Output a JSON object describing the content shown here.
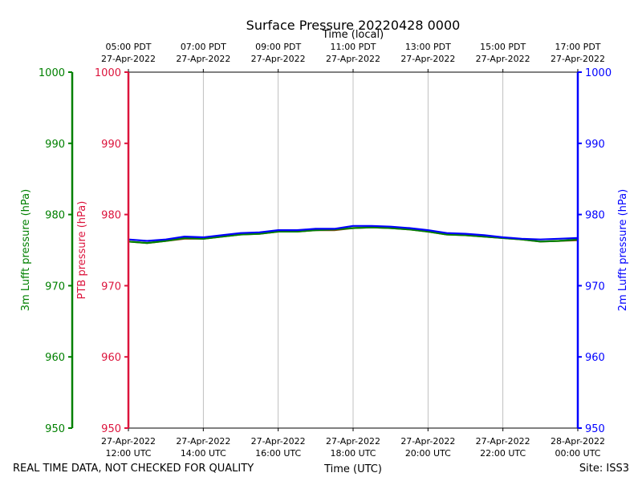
{
  "chart_data": {
    "type": "line",
    "title": "Surface Pressure 20220428 0000",
    "top_axis_label": "Time (local)",
    "bottom_axis_label": "Time (UTC)",
    "footer_left": "REAL TIME DATA, NOT CHECKED FOR QUALITY",
    "footer_right": "Site: ISS3",
    "x_range": [
      "2022-04-27 12:00",
      "2022-04-28 00:00"
    ],
    "ylim": [
      950,
      1000
    ],
    "grid": "vertical",
    "legend": "none",
    "bottom_ticks": [
      {
        "x": "2022-04-27 12:00",
        "line1": "27-Apr-2022",
        "line2": "12:00 UTC"
      },
      {
        "x": "2022-04-27 14:00",
        "line1": "27-Apr-2022",
        "line2": "14:00 UTC"
      },
      {
        "x": "2022-04-27 16:00",
        "line1": "27-Apr-2022",
        "line2": "16:00 UTC"
      },
      {
        "x": "2022-04-27 18:00",
        "line1": "27-Apr-2022",
        "line2": "18:00 UTC"
      },
      {
        "x": "2022-04-27 20:00",
        "line1": "27-Apr-2022",
        "line2": "20:00 UTC"
      },
      {
        "x": "2022-04-27 22:00",
        "line1": "27-Apr-2022",
        "line2": "22:00 UTC"
      },
      {
        "x": "2022-04-28 00:00",
        "line1": "28-Apr-2022",
        "line2": "00:00 UTC"
      }
    ],
    "top_ticks": [
      {
        "x": "2022-04-27 12:00",
        "line1": "05:00 PDT",
        "line2": "27-Apr-2022"
      },
      {
        "x": "2022-04-27 14:00",
        "line1": "07:00 PDT",
        "line2": "27-Apr-2022"
      },
      {
        "x": "2022-04-27 16:00",
        "line1": "09:00 PDT",
        "line2": "27-Apr-2022"
      },
      {
        "x": "2022-04-27 18:00",
        "line1": "11:00 PDT",
        "line2": "27-Apr-2022"
      },
      {
        "x": "2022-04-27 20:00",
        "line1": "13:00 PDT",
        "line2": "27-Apr-2022"
      },
      {
        "x": "2022-04-27 22:00",
        "line1": "15:00 PDT",
        "line2": "27-Apr-2022"
      },
      {
        "x": "2022-04-28 00:00",
        "line1": "17:00 PDT",
        "line2": "27-Apr-2022"
      }
    ],
    "y_axes": [
      {
        "label": "3m Lufft pressure (hPa)",
        "color": "#008000",
        "ticks": [
          "1000",
          "990",
          "980",
          "970",
          "960",
          "950"
        ]
      },
      {
        "label": "PTB pressure (hPa)",
        "color": "#dc143c",
        "ticks": [
          "1000",
          "990",
          "980",
          "970",
          "960",
          "950"
        ]
      },
      {
        "label": "2m Lufft pressure (hPa)",
        "color": "#0000ff",
        "ticks": [
          "1000",
          "990",
          "980",
          "970",
          "960",
          "950"
        ]
      }
    ],
    "series": [
      {
        "color": "#8b4513",
        "x": [
          "2022-04-27 12:00",
          "2022-04-27 12:30",
          "2022-04-27 13:00",
          "2022-04-27 13:30",
          "2022-04-27 14:00",
          "2022-04-27 14:30",
          "2022-04-27 15:00",
          "2022-04-27 15:30",
          "2022-04-27 16:00",
          "2022-04-27 16:30",
          "2022-04-27 17:00",
          "2022-04-27 17:30",
          "2022-04-27 18:00",
          "2022-04-27 18:30",
          "2022-04-27 19:00",
          "2022-04-27 19:30",
          "2022-04-27 20:00",
          "2022-04-27 20:30",
          "2022-04-27 21:00",
          "2022-04-27 21:30",
          "2022-04-27 22:00",
          "2022-04-27 22:30",
          "2022-04-27 23:00",
          "2022-04-27 23:30",
          "2022-04-28 00:00"
        ],
        "values": [
          976.2,
          976.0,
          976.3,
          976.6,
          976.6,
          976.9,
          977.2,
          977.3,
          977.6,
          977.6,
          977.8,
          977.8,
          978.1,
          978.2,
          978.1,
          977.9,
          977.6,
          977.2,
          977.1,
          976.9,
          976.7,
          976.5,
          976.2,
          976.3,
          976.4
        ]
      },
      {
        "color": "#008000",
        "x": [
          "2022-04-27 12:00",
          "2022-04-27 12:30",
          "2022-04-27 13:00",
          "2022-04-27 13:30",
          "2022-04-27 14:00",
          "2022-04-27 14:30",
          "2022-04-27 15:00",
          "2022-04-27 15:30",
          "2022-04-27 16:00",
          "2022-04-27 16:30",
          "2022-04-27 17:00",
          "2022-04-27 17:30",
          "2022-04-27 18:00",
          "2022-04-27 18:30",
          "2022-04-27 19:00",
          "2022-04-27 19:30",
          "2022-04-27 20:00",
          "2022-04-27 20:30",
          "2022-04-27 21:00",
          "2022-04-27 21:30",
          "2022-04-27 22:00",
          "2022-04-27 22:30",
          "2022-04-27 23:00",
          "2022-04-27 23:30",
          "2022-04-28 00:00"
        ],
        "values": [
          976.2,
          976.0,
          976.3,
          976.7,
          976.6,
          976.9,
          977.2,
          977.3,
          977.6,
          977.6,
          977.8,
          977.9,
          978.1,
          978.2,
          978.1,
          977.9,
          977.6,
          977.2,
          977.1,
          976.9,
          976.7,
          976.5,
          976.2,
          976.3,
          976.5
        ]
      },
      {
        "color": "#0000ff",
        "x": [
          "2022-04-27 12:00",
          "2022-04-27 12:30",
          "2022-04-27 13:00",
          "2022-04-27 13:30",
          "2022-04-27 14:00",
          "2022-04-27 14:30",
          "2022-04-27 15:00",
          "2022-04-27 15:30",
          "2022-04-27 16:00",
          "2022-04-27 16:30",
          "2022-04-27 17:00",
          "2022-04-27 17:30",
          "2022-04-27 18:00",
          "2022-04-27 18:30",
          "2022-04-27 19:00",
          "2022-04-27 19:30",
          "2022-04-27 20:00",
          "2022-04-27 20:30",
          "2022-04-27 21:00",
          "2022-04-27 21:30",
          "2022-04-27 22:00",
          "2022-04-27 22:30",
          "2022-04-27 23:00",
          "2022-04-27 23:30",
          "2022-04-28 00:00"
        ],
        "values": [
          976.5,
          976.3,
          976.5,
          976.9,
          976.8,
          977.1,
          977.4,
          977.5,
          977.8,
          977.8,
          978.0,
          978.0,
          978.4,
          978.4,
          978.3,
          978.1,
          977.8,
          977.4,
          977.3,
          977.1,
          976.8,
          976.6,
          976.5,
          976.6,
          976.7
        ]
      }
    ]
  }
}
